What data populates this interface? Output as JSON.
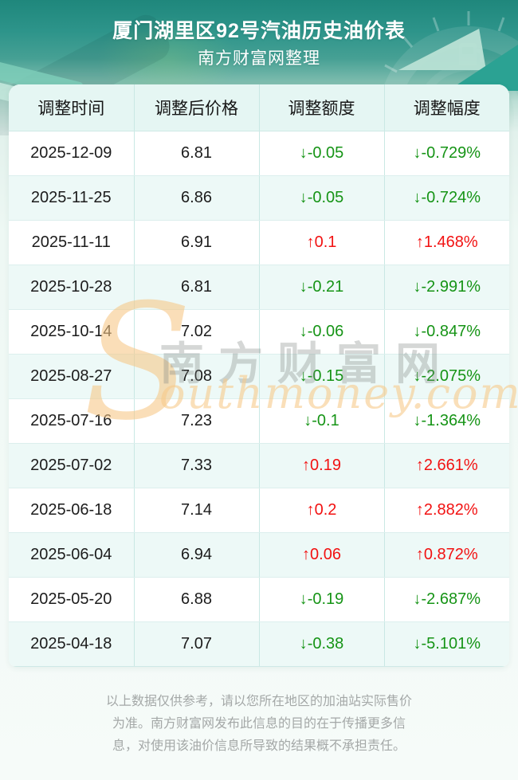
{
  "page": {
    "title": "厦门湖里区92号汽油历史油价表",
    "subtitle": "南方财富网整理"
  },
  "colors": {
    "up": "#f21212",
    "down": "#169416",
    "header_teal": "#2d948a",
    "table_header_bg": "#e5f6f3",
    "row_stripe_bg": "#edf9f7",
    "watermark_orange": "#f6c785"
  },
  "table": {
    "columns": [
      "调整时间",
      "调整后价格",
      "调整额度",
      "调整幅度"
    ],
    "arrow_up": "↑",
    "arrow_down": "↓",
    "rows": [
      {
        "date": "2025-12-09",
        "price": "6.81",
        "change": "-0.05",
        "pct": "-0.729%",
        "direction": "down"
      },
      {
        "date": "2025-11-25",
        "price": "6.86",
        "change": "-0.05",
        "pct": "-0.724%",
        "direction": "down"
      },
      {
        "date": "2025-11-11",
        "price": "6.91",
        "change": "0.1",
        "pct": "1.468%",
        "direction": "up"
      },
      {
        "date": "2025-10-28",
        "price": "6.81",
        "change": "-0.21",
        "pct": "-2.991%",
        "direction": "down"
      },
      {
        "date": "2025-10-14",
        "price": "7.02",
        "change": "-0.06",
        "pct": "-0.847%",
        "direction": "down"
      },
      {
        "date": "2025-08-27",
        "price": "7.08",
        "change": "-0.15",
        "pct": "-2.075%",
        "direction": "down"
      },
      {
        "date": "2025-07-16",
        "price": "7.23",
        "change": "-0.1",
        "pct": "-1.364%",
        "direction": "down"
      },
      {
        "date": "2025-07-02",
        "price": "7.33",
        "change": "0.19",
        "pct": "2.661%",
        "direction": "up"
      },
      {
        "date": "2025-06-18",
        "price": "7.14",
        "change": "0.2",
        "pct": "2.882%",
        "direction": "up"
      },
      {
        "date": "2025-06-04",
        "price": "6.94",
        "change": "0.06",
        "pct": "0.872%",
        "direction": "up"
      },
      {
        "date": "2025-05-20",
        "price": "6.88",
        "change": "-0.19",
        "pct": "-2.687%",
        "direction": "down"
      },
      {
        "date": "2025-04-18",
        "price": "7.07",
        "change": "-0.38",
        "pct": "-5.101%",
        "direction": "down"
      }
    ]
  },
  "watermark": {
    "s": "S",
    "cn": "南方财富网",
    "en": "outhmoney.com"
  },
  "footer": {
    "lines": [
      "以上数据仅供参考，请以您所在地区的加油站实际售价",
      "为准。南方财富网发布此信息的目的在于传播更多信",
      "息，对使用该油价信息所导致的结果概不承担责任。"
    ]
  },
  "chart_data": {
    "type": "table",
    "title": "厦门湖里区92号汽油历史油价表",
    "subtitle": "南方财富网整理",
    "columns": [
      "调整时间",
      "调整后价格",
      "调整额度",
      "调整幅度"
    ],
    "rows": [
      [
        "2025-12-09",
        6.81,
        -0.05,
        "-0.729%"
      ],
      [
        "2025-11-25",
        6.86,
        -0.05,
        "-0.724%"
      ],
      [
        "2025-11-11",
        6.91,
        0.1,
        "1.468%"
      ],
      [
        "2025-10-28",
        6.81,
        -0.21,
        "-2.991%"
      ],
      [
        "2025-10-14",
        7.02,
        -0.06,
        "-0.847%"
      ],
      [
        "2025-08-27",
        7.08,
        -0.15,
        "-2.075%"
      ],
      [
        "2025-07-16",
        7.23,
        -0.1,
        "-1.364%"
      ],
      [
        "2025-07-02",
        7.33,
        0.19,
        "2.661%"
      ],
      [
        "2025-06-18",
        7.14,
        0.2,
        "2.882%"
      ],
      [
        "2025-06-04",
        6.94,
        0.06,
        "0.872%"
      ],
      [
        "2025-05-20",
        6.88,
        -0.19,
        "-2.687%"
      ],
      [
        "2025-04-18",
        7.07,
        -0.38,
        "-5.101%"
      ]
    ]
  }
}
